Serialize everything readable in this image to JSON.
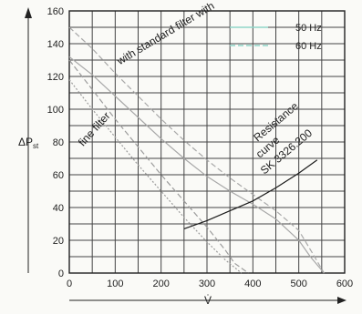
{
  "chart_data": {
    "type": "line",
    "title": "",
    "xlabel": "V̇",
    "ylabel": "ΔP",
    "ylabel_sub": "st",
    "xlim": [
      0,
      600
    ],
    "ylim": [
      0,
      160
    ],
    "xticks": [
      0,
      100,
      200,
      300,
      400,
      500,
      600
    ],
    "yticks": [
      0,
      20,
      40,
      60,
      80,
      100,
      120,
      140,
      160
    ],
    "grid": true,
    "grid_minor_step": {
      "x": 50,
      "y": 10
    },
    "legend": {
      "placement": "top-right",
      "entries": [
        {
          "label": "50 Hz",
          "dash": "solid",
          "color": "#8fd6c8"
        },
        {
          "label": "60 Hz",
          "dash": "dashed",
          "color": "#8fd6c8"
        }
      ]
    },
    "series": [
      {
        "group": "with standard filter",
        "freq": "50 Hz",
        "x": [
          0,
          50,
          100,
          150,
          200,
          250,
          300,
          350,
          400,
          450,
          500,
          525,
          555
        ],
        "y": [
          132,
          121,
          108,
          95,
          82,
          70,
          59,
          50,
          42,
          33,
          20,
          10,
          0
        ]
      },
      {
        "group": "with standard filter",
        "freq": "60 Hz",
        "x": [
          0,
          50,
          100,
          150,
          200,
          250,
          300,
          350,
          400,
          450,
          500,
          530,
          555
        ],
        "y": [
          150,
          137,
          122,
          108,
          94,
          81,
          69,
          58,
          48,
          38,
          26,
          12,
          0
        ]
      },
      {
        "group": "fine filter",
        "freq": "50 Hz",
        "x": [
          0,
          50,
          100,
          150,
          200,
          250,
          300,
          340,
          375
        ],
        "y": [
          118,
          100,
          83,
          66,
          50,
          34,
          19,
          8,
          0
        ]
      },
      {
        "group": "fine filter",
        "freq": "60 Hz",
        "x": [
          0,
          50,
          100,
          150,
          200,
          250,
          300,
          340,
          360,
          390
        ],
        "y": [
          130,
          112,
          94,
          77,
          60,
          44,
          28,
          14,
          6,
          0
        ]
      },
      {
        "group": "resistance curve",
        "x": [
          250,
          300,
          350,
          400,
          450,
          500,
          540
        ],
        "y": [
          27,
          32,
          38,
          44,
          52,
          61,
          69
        ]
      }
    ],
    "annotations": [
      {
        "text": "with standard filter with",
        "anchor_data": [
          110,
          127
        ]
      },
      {
        "text": "fine filter",
        "anchor_data": [
          30,
          77
        ]
      },
      {
        "text": "Resistance",
        "anchor_data": [
          410,
          80
        ]
      },
      {
        "text": "curve",
        "anchor_data": [
          415,
          70
        ]
      },
      {
        "text": "SK 3326.200",
        "anchor_data": [
          425,
          60
        ]
      }
    ]
  }
}
